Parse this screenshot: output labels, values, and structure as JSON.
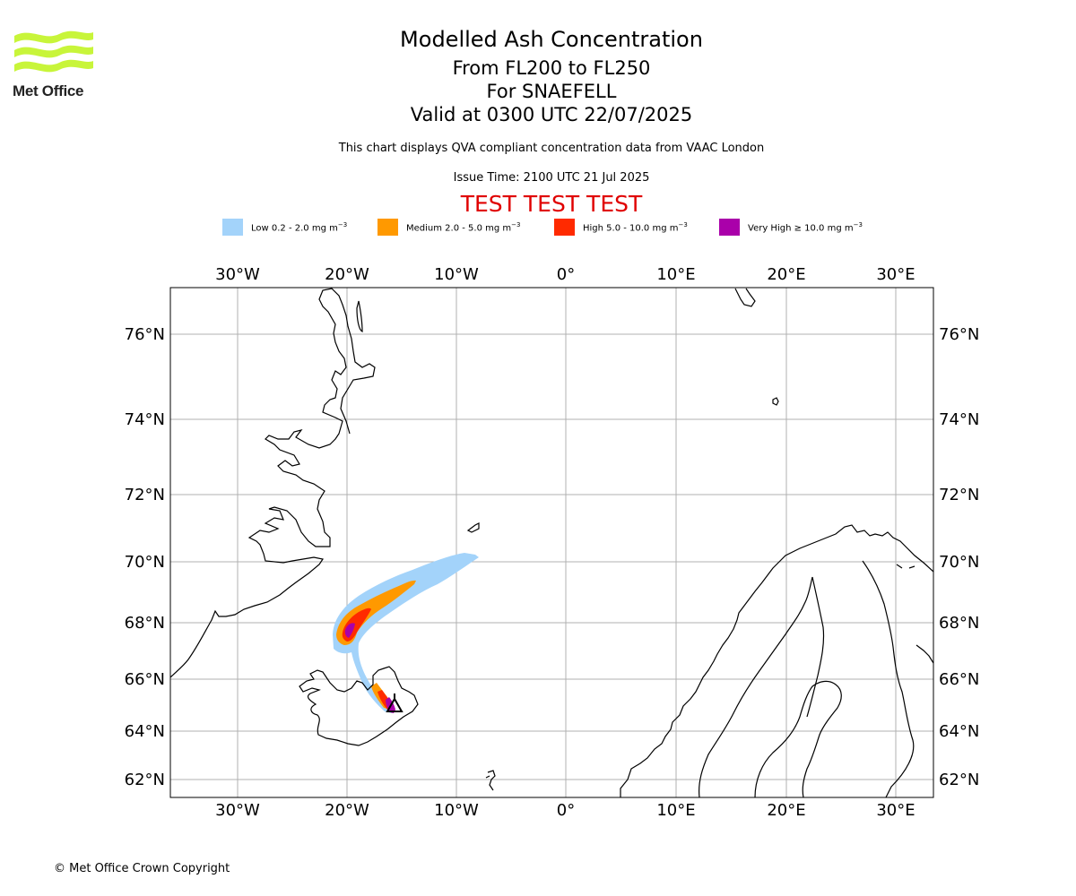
{
  "branding": {
    "logo_text": "Met Office",
    "logo_color": "#c8f53a"
  },
  "header": {
    "title": "Modelled Ash Concentration",
    "levels": "From FL200 to FL250",
    "volcano": "For SNAEFELL",
    "valid": "Valid at 0300 UTC 22/07/2025",
    "subtitle": "This chart displays QVA compliant concentration data from VAAC London",
    "issue_time": "Issue Time: 2100 UTC 21 Jul 2025",
    "test_banner": "TEST TEST TEST"
  },
  "legend": [
    {
      "label": "Low 0.2 - 2.0 mg m",
      "exp": "−3",
      "color": "#a3d3fa"
    },
    {
      "label": "Medium 2.0 - 5.0 mg m",
      "exp": "−3",
      "color": "#ff9900"
    },
    {
      "label": "High 5.0 - 10.0 mg m",
      "exp": "−3",
      "color": "#ff2a00"
    },
    {
      "label": "Very High  ≥  10.0 mg m",
      "exp": "−3",
      "color": "#aa00aa"
    }
  ],
  "map": {
    "lon_ticks": [
      "30°W",
      "20°W",
      "10°W",
      "0°",
      "10°E",
      "20°E",
      "30°E"
    ],
    "lat_ticks": [
      "76°N",
      "74°N",
      "72°N",
      "70°N",
      "68°N",
      "66°N",
      "64°N",
      "62°N"
    ],
    "volcano_symbol": "volcano-triangle-icon",
    "source_volcano": "SNAEFELL"
  },
  "footer": {
    "copyright": "© Met Office Crown Copyright"
  }
}
